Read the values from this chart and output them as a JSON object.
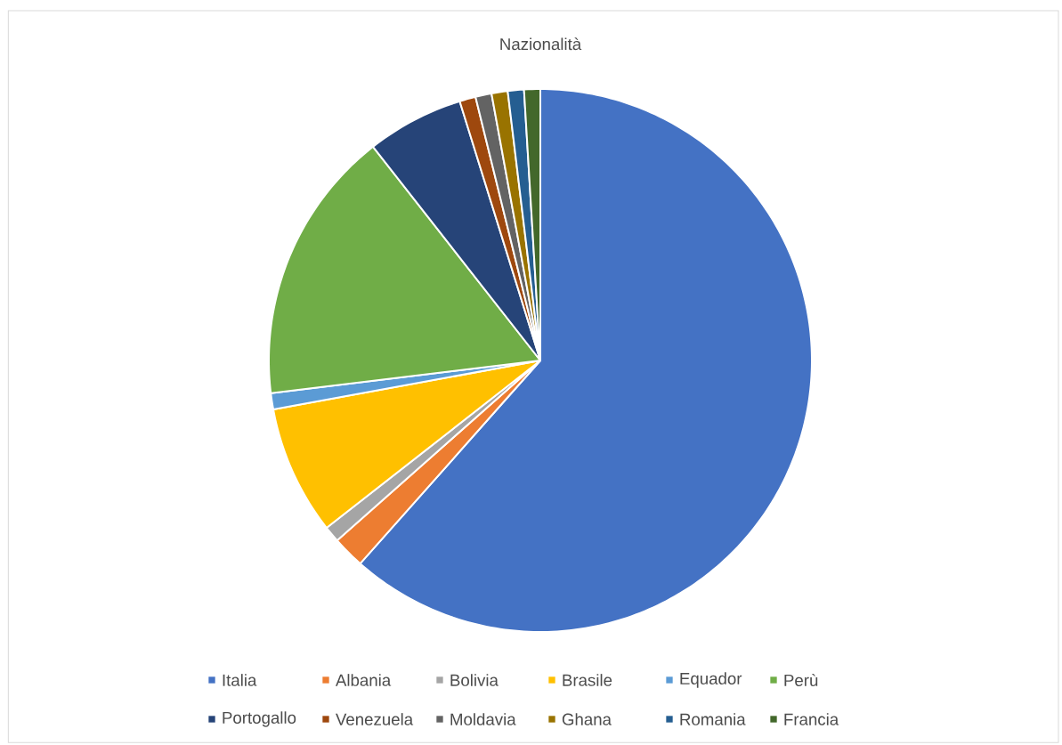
{
  "chart_data": {
    "type": "pie",
    "title": "Nazionalità",
    "categories": [
      "Italia",
      "Albania",
      "Bolivia",
      "Brasile",
      "Equador",
      "Perù",
      "Portogallo",
      "Venezuela",
      "Moldavia",
      "Ghana",
      "Romania",
      "Francia"
    ],
    "values": [
      61.54,
      1.92,
      0.96,
      7.69,
      0.96,
      16.35,
      5.77,
      0.96,
      0.96,
      0.96,
      0.96,
      0.96
    ],
    "colors": [
      "#4472c4",
      "#ed7d31",
      "#a5a5a5",
      "#ffc000",
      "#5b9bd5",
      "#70ad47",
      "#264478",
      "#9e480e",
      "#636363",
      "#997300",
      "#255e91",
      "#43682b"
    ],
    "legend": "bottom"
  }
}
